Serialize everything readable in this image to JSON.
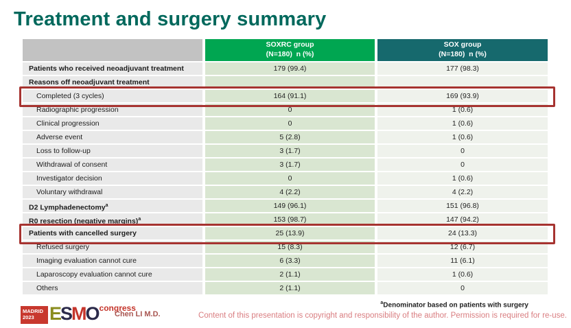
{
  "slide": {
    "title": "Treatment and surgery summary"
  },
  "table": {
    "header": {
      "blank": "",
      "soxrc_line1": "SOXRC group",
      "soxrc_line2": "(N=180)  n (%)",
      "sox_line1": "SOX group",
      "sox_line2": "(N=180)  n (%)"
    },
    "rows": [
      {
        "label": "Patients who received neoadjuvant treatment",
        "soxrc": "179 (99.4)",
        "sox": "177 (98.3)"
      },
      {
        "label": "Reasons off neoadjuvant treatment",
        "soxrc": "",
        "sox": ""
      },
      {
        "label": "Completed (3 cycles)",
        "soxrc": "164 (91.1)",
        "sox": "169 (93.9)"
      },
      {
        "label": "Radiographic progression",
        "soxrc": "0",
        "sox": "1 (0.6)"
      },
      {
        "label": "Clinical progression",
        "soxrc": "0",
        "sox": "1 (0.6)"
      },
      {
        "label": "Adverse event",
        "soxrc": "5 (2.8)",
        "sox": "1 (0.6)"
      },
      {
        "label": "Loss to follow-up",
        "soxrc": "3 (1.7)",
        "sox": "0"
      },
      {
        "label": "Withdrawal of consent",
        "soxrc": "3 (1.7)",
        "sox": "0"
      },
      {
        "label": "Investigator decision",
        "soxrc": "0",
        "sox": "1 (0.6)"
      },
      {
        "label": "Voluntary withdrawal",
        "soxrc": "4 (2.2)",
        "sox": "4 (2.2)"
      },
      {
        "label": "D2 Lymphadenectomy",
        "sup": "a",
        "soxrc": "149 (96.1)",
        "sox": "151 (96.8)"
      },
      {
        "label": "R0 resection (negative margins)",
        "sup": "a",
        "soxrc": "153 (98.7)",
        "sox": "147 (94.2)"
      },
      {
        "label": "Patients with cancelled surgery",
        "soxrc": "25 (13.9)",
        "sox": "24 (13.3)"
      },
      {
        "label": "Refused surgery",
        "soxrc": "15 (8.3)",
        "sox": "12 (6.7)"
      },
      {
        "label": "Imaging evaluation cannot cure",
        "soxrc": "6 (3.3)",
        "sox": "11 (6.1)"
      },
      {
        "label": "Laparoscopy evaluation cannot cure",
        "soxrc": "2 (1.1)",
        "sox": "1 (0.6)"
      },
      {
        "label": "Others",
        "soxrc": "2 (1.1)",
        "sox": "0"
      }
    ]
  },
  "footer": {
    "logo": {
      "city": "MADRID",
      "year": "2023",
      "e": "E",
      "s": "S",
      "m": "M",
      "o": "O",
      "congress": "congress"
    },
    "presenter": "Chen LI M.D.",
    "footnote_sup": "a",
    "footnote": "Denominator based on patients with surgery",
    "copyright": "Content of this presentation is copyright and responsibility of the author.  Permission is required for re-use."
  },
  "colors": {
    "title": "#00685C",
    "header_green": "#00A651",
    "header_teal": "#16696D",
    "header_gray": "#C2C2C2",
    "label_cell": "#E9E9E9",
    "soxrc_cell": "#D9E6D1",
    "sox_cell": "#EFF2EC",
    "highlight_border": "#A63330",
    "logo_red": "#C8382E",
    "presenter_text": "#A85550",
    "copyright_text": "#D97D80"
  }
}
